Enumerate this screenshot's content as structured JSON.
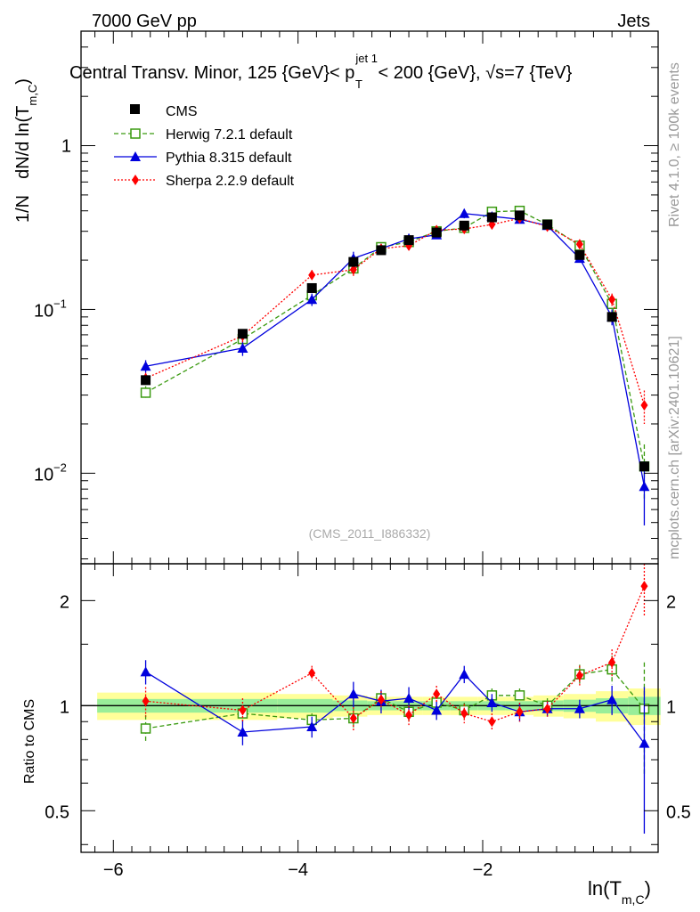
{
  "header": {
    "energy": "7000 GeV pp",
    "process": "Jets",
    "title_left": "Central Transv. Minor, 125 {GeV}< p",
    "title_sup": "jet 1",
    "title_sub": "T",
    "title_right": " < 200 {GeV}, √s=7 {TeV}"
  },
  "side": {
    "rivet": "Rivet 4.1.0, ≥ 100k events",
    "mcplots": "mcplots.cern.ch [arXiv:2401.10621]"
  },
  "analysis_id": "(CMS_2011_I886332)",
  "legend": {
    "cms": "CMS",
    "herwig": "Herwig 7.2.1 default",
    "pythia": "Pythia 8.315 default",
    "sherpa": "Sherpa 2.2.9 default"
  },
  "axes": {
    "ylabel_prefix": "1/N",
    "ylabel_main": "dN/d ln(T",
    "ylabel_sub": "m,C",
    "ylabel_close": ")",
    "xlabel_main": "ln(T",
    "xlabel_sub": "m,C",
    "xlabel_close": ")",
    "ratio_label": "Ratio to CMS",
    "x_ticks": [
      "−6",
      "−4",
      "−2"
    ],
    "y_ticks_main": [
      "1"
    ],
    "y_ticks_ratio": [
      "2",
      "1",
      "0.5"
    ],
    "y_ticks_pow": {
      "base": "10",
      "exp_m1": "−1",
      "exp_m2": "−2"
    }
  },
  "chart_data": {
    "type": "line",
    "x": [
      -5.65,
      -4.6,
      -3.85,
      -3.4,
      -3.1,
      -2.8,
      -2.5,
      -2.2,
      -1.9,
      -1.6,
      -1.3,
      -0.95,
      -0.6,
      -0.25
    ],
    "xlim": [
      -6.35,
      -0.1
    ],
    "main": {
      "yscale": "log",
      "ylim": [
        0.0028,
        5.0
      ],
      "series": [
        {
          "name": "CMS",
          "values": [
            0.037,
            0.071,
            0.135,
            0.195,
            0.23,
            0.265,
            0.295,
            0.325,
            0.365,
            0.375,
            0.33,
            0.215,
            0.09,
            0.011
          ],
          "err": [
            0.0015,
            0.002,
            0.004,
            0.006,
            0.007,
            0.008,
            0.009,
            0.01,
            0.01,
            0.01,
            0.01,
            0.007,
            0.004,
            0.0006
          ],
          "color": "#000000"
        },
        {
          "name": "Herwig 7.2.1 default",
          "values": [
            0.031,
            0.066,
            0.122,
            0.178,
            0.24,
            0.258,
            0.3,
            0.315,
            0.395,
            0.4,
            0.33,
            0.245,
            0.108,
            0.011
          ],
          "err": [
            0.003,
            0.005,
            0.01,
            0.015,
            0.01,
            0.012,
            0.014,
            0.015,
            0.016,
            0.016,
            0.014,
            0.015,
            0.012,
            0.004
          ],
          "color": "#3a9a10"
        },
        {
          "name": "Pythia 8.315 default",
          "values": [
            0.045,
            0.058,
            0.115,
            0.205,
            0.235,
            0.27,
            0.285,
            0.385,
            0.37,
            0.355,
            0.325,
            0.205,
            0.09,
            0.0083
          ],
          "err": [
            0.004,
            0.006,
            0.01,
            0.02,
            0.015,
            0.02,
            0.015,
            0.025,
            0.02,
            0.02,
            0.015,
            0.012,
            0.01,
            0.0035
          ],
          "color": "#0000dd"
        },
        {
          "name": "Sherpa 2.2.9 default",
          "values": [
            0.038,
            0.069,
            0.162,
            0.175,
            0.235,
            0.245,
            0.305,
            0.31,
            0.33,
            0.36,
            0.32,
            0.25,
            0.115,
            0.026
          ],
          "err": [
            0.003,
            0.006,
            0.012,
            0.015,
            0.012,
            0.015,
            0.015,
            0.02,
            0.015,
            0.02,
            0.015,
            0.015,
            0.01,
            0.006
          ],
          "color": "#ff0000"
        }
      ]
    },
    "ratio": {
      "yscale": "log",
      "ylim": [
        0.38,
        2.55
      ],
      "band_inner": [
        0.045,
        0.045,
        0.045,
        0.035,
        0.03,
        0.03,
        0.03,
        0.03,
        0.03,
        0.03,
        0.035,
        0.04,
        0.05,
        0.06
      ],
      "band_outer": [
        0.09,
        0.09,
        0.08,
        0.07,
        0.06,
        0.06,
        0.06,
        0.06,
        0.06,
        0.06,
        0.07,
        0.08,
        0.1,
        0.12
      ],
      "series": [
        {
          "name": "Herwig 7.2.1 default",
          "values": [
            0.86,
            0.95,
            0.91,
            0.92,
            1.05,
            0.96,
            1.02,
            0.97,
            1.07,
            1.07,
            1.0,
            1.23,
            1.27,
            0.98
          ],
          "err": [
            0.08,
            0.05,
            0.04,
            0.06,
            0.05,
            0.06,
            0.05,
            0.05,
            0.05,
            0.05,
            0.05,
            0.08,
            0.12,
            0.35
          ],
          "color": "#3a9a10"
        },
        {
          "name": "Pythia 8.315 default",
          "values": [
            1.25,
            0.84,
            0.87,
            1.08,
            1.03,
            1.05,
            0.97,
            1.23,
            1.02,
            0.96,
            0.98,
            0.98,
            1.04,
            0.78
          ],
          "err": [
            0.1,
            0.07,
            0.06,
            0.09,
            0.08,
            0.08,
            0.06,
            0.07,
            0.06,
            0.06,
            0.05,
            0.06,
            0.1,
            0.35
          ],
          "color": "#0000dd"
        },
        {
          "name": "Sherpa 2.2.9 default",
          "values": [
            1.03,
            0.97,
            1.24,
            0.92,
            1.04,
            0.94,
            1.08,
            0.95,
            0.9,
            0.96,
            0.98,
            1.22,
            1.33,
            2.2
          ],
          "err": [
            0.1,
            0.08,
            0.06,
            0.07,
            0.06,
            0.06,
            0.06,
            0.06,
            0.05,
            0.06,
            0.05,
            0.08,
            0.12,
            0.4
          ],
          "color": "#ff0000"
        }
      ]
    }
  }
}
